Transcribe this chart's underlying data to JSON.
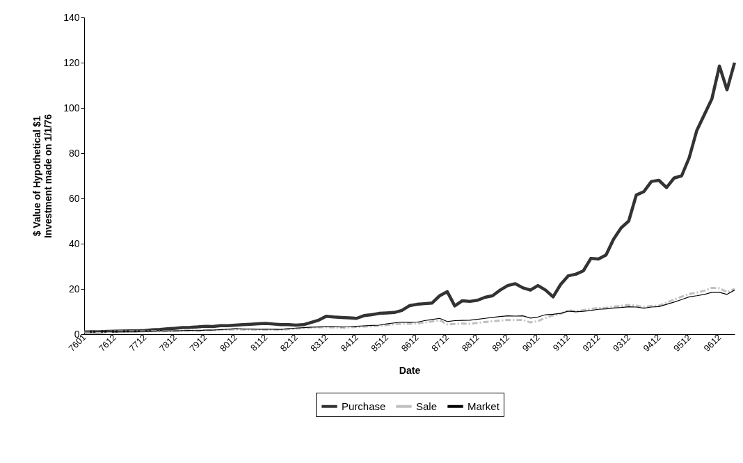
{
  "chart_data": {
    "type": "line",
    "xlabel": "Date",
    "ylabel": "$ Value of Hypothetical $1\nInvestment made on 1/1/76",
    "categories": [
      "7601",
      null,
      null,
      null,
      "7612",
      null,
      null,
      null,
      "7712",
      null,
      null,
      null,
      "7812",
      null,
      null,
      null,
      "7912",
      null,
      null,
      null,
      "8012",
      null,
      null,
      null,
      "8112",
      null,
      null,
      null,
      "8212",
      null,
      null,
      null,
      "8312",
      null,
      null,
      null,
      "8412",
      null,
      null,
      null,
      "8512",
      null,
      null,
      null,
      "8612",
      null,
      null,
      null,
      "8712",
      null,
      null,
      null,
      "8812",
      null,
      null,
      null,
      "8912",
      null,
      null,
      null,
      "9012",
      null,
      null,
      null,
      "9112",
      null,
      null,
      null,
      "9212",
      null,
      null,
      null,
      "9312",
      null,
      null,
      null,
      "9412",
      null,
      null,
      null,
      "9512",
      null,
      null,
      null,
      "9612",
      null,
      null
    ],
    "series": [
      {
        "name": "Purchase",
        "color": "#333333",
        "line_style": "solid",
        "values": [
          1.0,
          1.1,
          1.1,
          1.2,
          1.3,
          1.4,
          1.5,
          1.5,
          1.6,
          1.9,
          2.1,
          2.4,
          2.6,
          2.9,
          3.0,
          3.2,
          3.5,
          3.4,
          3.8,
          3.8,
          4.0,
          4.2,
          4.4,
          4.6,
          4.8,
          4.5,
          4.2,
          4.2,
          4.0,
          4.2,
          5.2,
          6.2,
          7.9,
          7.6,
          7.4,
          7.2,
          7.0,
          8.2,
          8.6,
          9.2,
          9.4,
          9.6,
          10.5,
          12.6,
          13.2,
          13.5,
          13.8,
          17,
          18.8,
          12.5,
          14.8,
          14.5,
          15,
          16.3,
          17,
          19.5,
          21.5,
          22.3,
          20.5,
          19.5,
          21.5,
          19.5,
          16.5,
          22,
          25.8,
          26.5,
          28,
          33.5,
          33.2,
          35,
          42,
          47,
          50,
          61.5,
          63,
          67.5,
          68,
          64.8,
          69,
          70,
          78,
          90,
          97,
          104,
          118.5,
          108,
          120
        ]
      },
      {
        "name": "Sale",
        "color": "#c0c0c0",
        "line_style": "dashed",
        "values": [
          1.0,
          1.0,
          1.1,
          1.1,
          1.2,
          1.2,
          1.2,
          1.2,
          1.2,
          1.3,
          1.3,
          1.4,
          1.4,
          1.5,
          1.6,
          1.6,
          1.7,
          1.8,
          1.9,
          2.0,
          2.2,
          2.1,
          2.1,
          2.0,
          2.0,
          2.0,
          1.9,
          2.2,
          2.5,
          2.7,
          2.9,
          3.0,
          3.1,
          3.0,
          2.9,
          3.0,
          3.2,
          3.4,
          3.5,
          3.6,
          4.1,
          4.4,
          4.6,
          4.6,
          4.7,
          5.2,
          5.6,
          6.2,
          4.3,
          4.5,
          4.7,
          4.6,
          5.0,
          5.4,
          5.7,
          6.0,
          6.3,
          6.2,
          6.3,
          5.2,
          5.8,
          7.2,
          8.3,
          9.0,
          10.5,
          10.2,
          10.6,
          11.2,
          11.6,
          11.6,
          12.2,
          12.5,
          12.9,
          12.6,
          12.0,
          12.5,
          12.6,
          14.0,
          15.3,
          16.6,
          17.8,
          18.4,
          19.2,
          20.5,
          20.3,
          18.6,
          20.0
        ]
      },
      {
        "name": "Market",
        "color": "#000000",
        "line_style": "solid",
        "values": [
          1.0,
          1.0,
          1.1,
          1.1,
          1.2,
          1.2,
          1.2,
          1.2,
          1.3,
          1.3,
          1.4,
          1.4,
          1.5,
          1.6,
          1.7,
          1.6,
          1.8,
          1.8,
          2.0,
          2.2,
          2.4,
          2.3,
          2.3,
          2.2,
          2.2,
          2.2,
          2.1,
          2.4,
          2.7,
          2.9,
          3.1,
          3.2,
          3.3,
          3.3,
          3.2,
          3.3,
          3.5,
          3.7,
          3.9,
          4.0,
          4.6,
          5.0,
          5.3,
          5.2,
          5.3,
          6.0,
          6.5,
          7.0,
          5.6,
          6.0,
          6.1,
          6.2,
          6.6,
          7.0,
          7.4,
          7.8,
          8.1,
          8.0,
          8.1,
          7.1,
          7.6,
          8.6,
          8.8,
          9.2,
          10.2,
          9.9,
          10.1,
          10.5,
          11.0,
          11.2,
          11.6,
          11.8,
          12.1,
          12.0,
          11.5,
          12.0,
          12.2,
          13.2,
          14.2,
          15.3,
          16.5,
          17.0,
          17.6,
          18.5,
          18.5,
          17.6,
          19.5
        ]
      }
    ],
    "ylim": [
      0,
      140
    ],
    "yticks": [
      0,
      20,
      40,
      60,
      80,
      100,
      120,
      140
    ],
    "grid": false,
    "legend": "bottom"
  }
}
